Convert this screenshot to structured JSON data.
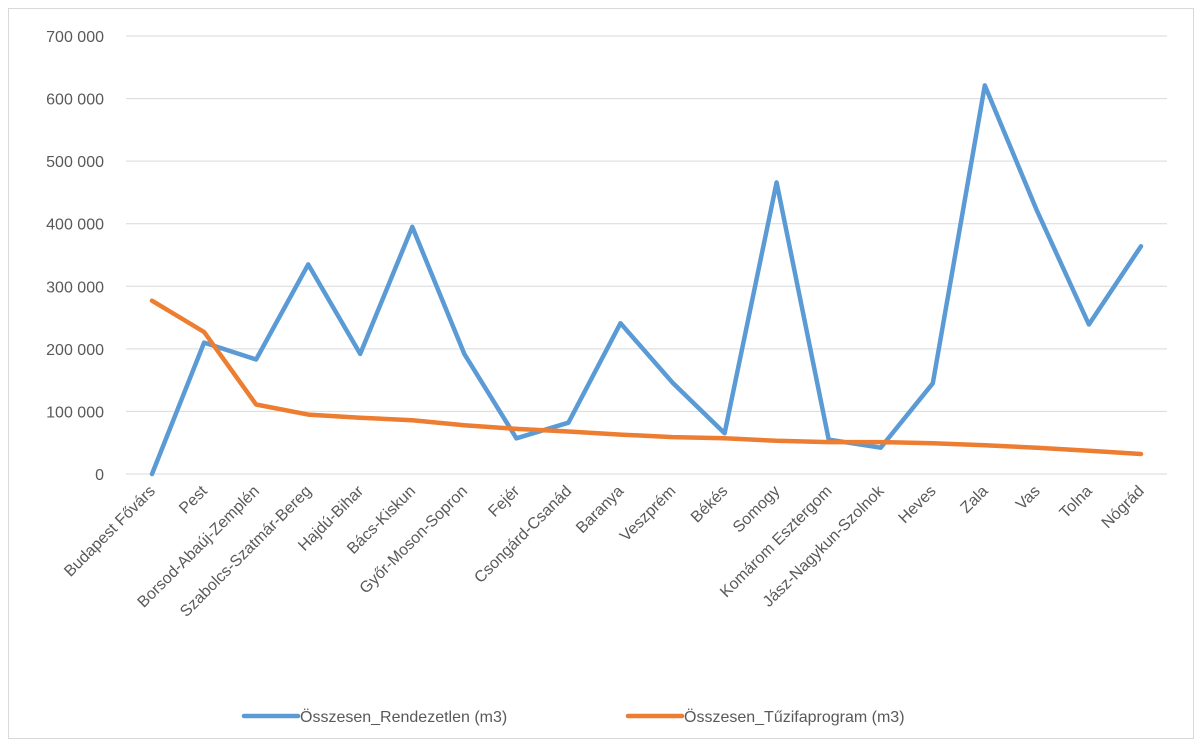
{
  "chart_data": {
    "type": "line",
    "title": "",
    "xlabel": "",
    "ylabel": "",
    "categories": [
      "Budapest Fővárs",
      "Pest",
      "Borsod-Abaúj-Zemplén",
      "Szabolcs-Szatmár-Bereg",
      "Hajdú-Bihar",
      "Bács-Kiskun",
      "Győr-Moson-Sopron",
      "Fejér",
      "Csongárd-Csanád",
      "Baranya",
      "Veszprém",
      "Békés",
      "Somogy",
      "Komárom Esztergom",
      "Jász-Nagykun-Szolnok",
      "Heves",
      "Zala",
      "Vas",
      "Tolna",
      "Nógrád"
    ],
    "ylim": [
      0,
      700000
    ],
    "yticks": [
      0,
      100000,
      200000,
      300000,
      400000,
      500000,
      600000,
      700000
    ],
    "ytick_labels": [
      "0",
      "100 000",
      "200 000",
      "300 000",
      "400 000",
      "500 000",
      "600 000",
      "700 000"
    ],
    "grid": true,
    "legend_position": "bottom",
    "series": [
      {
        "name": "Összesen_Rendezetlen (m3)",
        "color": "#5b9bd5",
        "values": [
          0,
          210000,
          183000,
          335000,
          192000,
          395000,
          192000,
          57000,
          82000,
          241000,
          146000,
          65000,
          466000,
          55000,
          42000,
          145000,
          621000,
          421000,
          239000,
          364000
        ]
      },
      {
        "name": "Összesen_Tűzifaprogram (m3)",
        "color": "#ed7d31",
        "values": [
          277000,
          227000,
          111000,
          95000,
          90000,
          86000,
          78000,
          72000,
          68000,
          63000,
          59000,
          57000,
          53000,
          51000,
          51000,
          49000,
          46000,
          42000,
          37000,
          32000
        ]
      }
    ]
  }
}
